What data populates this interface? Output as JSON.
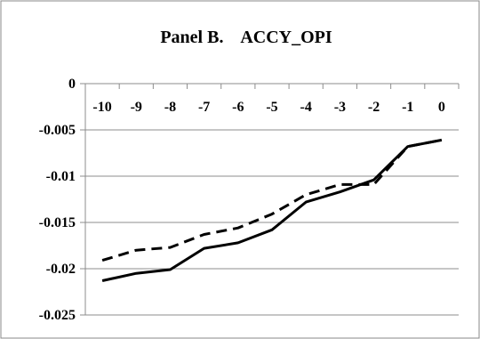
{
  "chart_data": {
    "type": "line",
    "title": "Panel B.    ACCY_OPI",
    "xlabel": "",
    "ylabel": "",
    "categories": [
      "-10",
      "-9",
      "-8",
      "-7",
      "-6",
      "-5",
      "-4",
      "-3",
      "-2",
      "-1",
      "0"
    ],
    "ylim": [
      -0.025,
      0
    ],
    "yticks": [
      0,
      -0.005,
      -0.01,
      -0.015,
      -0.02,
      -0.025
    ],
    "ytick_labels": [
      "0",
      "-0.005",
      "-0.01",
      "-0.015",
      "-0.02",
      "-0.025"
    ],
    "grid": true,
    "legend": "none",
    "x_axis_position": "top",
    "series": [
      {
        "style": "solid",
        "color": "#000000",
        "values": [
          -0.0213,
          -0.0205,
          -0.0201,
          -0.0178,
          -0.0172,
          -0.0158,
          -0.0128,
          -0.0117,
          -0.0104,
          -0.0068,
          -0.0061
        ]
      },
      {
        "style": "dashed",
        "color": "#000000",
        "values": [
          -0.0191,
          -0.018,
          -0.0177,
          -0.0163,
          -0.0156,
          -0.0141,
          -0.012,
          -0.0109,
          -0.0109,
          -0.0068,
          -0.0061
        ]
      }
    ]
  }
}
